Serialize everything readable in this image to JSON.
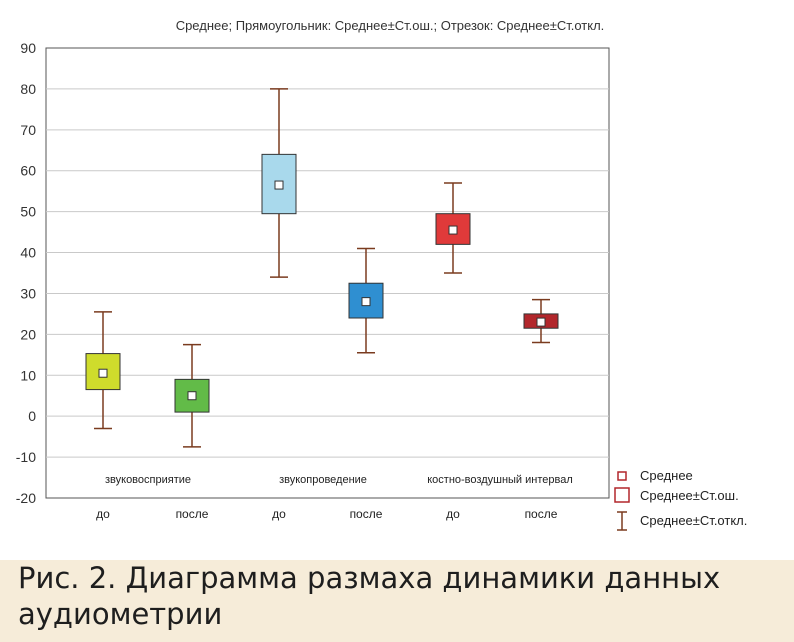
{
  "figure": {
    "caption": "Рис. 2. Диаграмма размаха динамики данных аудиометрии"
  },
  "chart_data": {
    "type": "box",
    "title": "Среднее; Прямоугольник: Среднее±Ст.ош.; Отрезок: Среднее±Ст.откл.",
    "xlabel": "",
    "ylabel": "",
    "ylim": [
      -20,
      90
    ],
    "yticks": [
      90,
      80,
      70,
      60,
      50,
      40,
      30,
      20,
      10,
      0,
      -10,
      -20
    ],
    "grid": true,
    "legend_position": "right-bottom",
    "groups": [
      "звуковосприятие",
      "звукопроведение",
      "костно-воздушный интервал"
    ],
    "categories": [
      "до",
      "после",
      "до",
      "после",
      "до",
      "после"
    ],
    "series": [
      {
        "group": 0,
        "category": "до",
        "mean": 10.5,
        "se_low": 6.5,
        "se_high": 15.3,
        "sd_low": -3,
        "sd_high": 25.5,
        "color": "#cfdc2c"
      },
      {
        "group": 0,
        "category": "после",
        "mean": 5,
        "se_low": 1,
        "se_high": 9,
        "sd_low": -7.5,
        "sd_high": 17.5,
        "color": "#62bb48"
      },
      {
        "group": 1,
        "category": "до",
        "mean": 56.5,
        "se_low": 49.5,
        "se_high": 64,
        "sd_low": 34,
        "sd_high": 80,
        "color": "#a9d9ec"
      },
      {
        "group": 1,
        "category": "после",
        "mean": 28,
        "se_low": 24,
        "se_high": 32.5,
        "sd_low": 15.5,
        "sd_high": 41,
        "color": "#2f8fd1"
      },
      {
        "group": 2,
        "category": "до",
        "mean": 45.5,
        "se_low": 42,
        "se_high": 49.5,
        "sd_low": 35,
        "sd_high": 57,
        "color": "#e03a3a"
      },
      {
        "group": 2,
        "category": "после",
        "mean": 23,
        "se_low": 21.5,
        "se_high": 25,
        "sd_low": 18,
        "sd_high": 28.5,
        "color": "#b2272c"
      }
    ],
    "legend": [
      "Среднее",
      "Среднее±Ст.ош.",
      "Среднее±Ст.откл."
    ],
    "colors": {
      "whisker": "#7a3b1f",
      "grid": "#c9c9c9",
      "axis": "#555555",
      "frame_bg": "#ffffff"
    }
  }
}
